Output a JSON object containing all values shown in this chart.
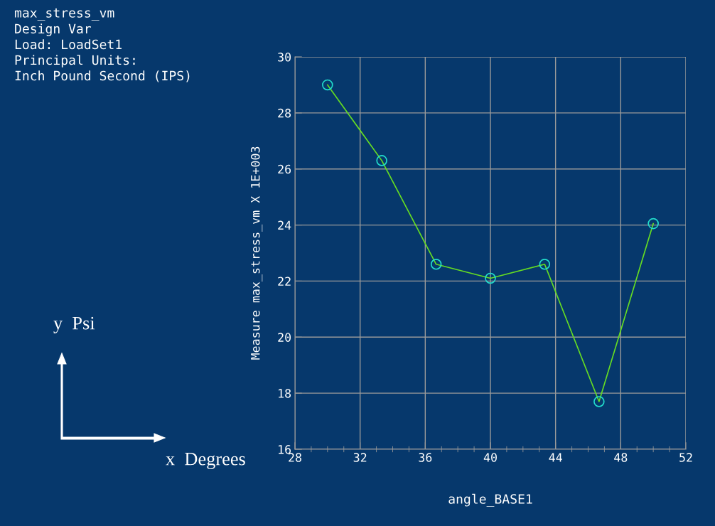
{
  "chart_data": {
    "type": "line",
    "annotations": [
      "max_stress_vm",
      "Design Var",
      "Load: LoadSet1",
      "Principal Units:",
      "Inch Pound Second (IPS)",
      "y  Psi",
      "x  Degrees"
    ],
    "ylabel": "Measure max_stress_vm X 1E+003",
    "xlabel": "angle_BASE1",
    "x": [
      30,
      33.33,
      36.67,
      40,
      43.33,
      46.67,
      50
    ],
    "series": [
      {
        "color": "#66dd22",
        "values": [
          29.0,
          26.3,
          22.6,
          22.1,
          22.6,
          17.7,
          24.05
        ]
      }
    ],
    "marker": "circle",
    "xlim": [
      28,
      52
    ],
    "xticks": [
      28,
      32,
      36,
      40,
      44,
      48,
      52
    ],
    "ylim": [
      16,
      30
    ],
    "yticks": [
      16,
      18,
      20,
      22,
      24,
      26,
      28,
      30
    ],
    "grid": true
  }
}
